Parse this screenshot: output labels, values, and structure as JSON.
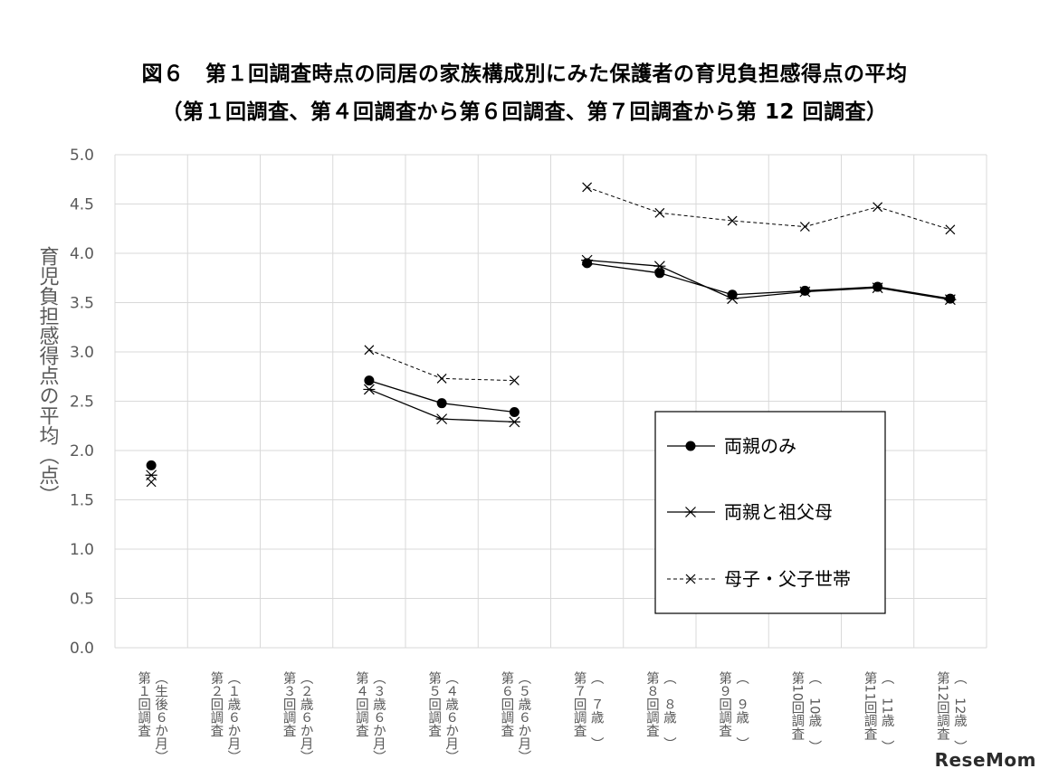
{
  "title_line1": "図６　第１回調査時点の同居の家族構成別にみた保護者の育児負担感得点の平均",
  "title_line2": "（第１回調査、第４回調査から第６回調査、第７回調査から第 12 回調査）",
  "watermark": "ReseMom",
  "chart_data": {
    "type": "line",
    "ylabel": "育児負担感得点の平均（点）",
    "ylim": [
      0,
      5
    ],
    "yticks": [
      "0.0",
      "0.5",
      "1.0",
      "1.5",
      "2.0",
      "2.5",
      "3.0",
      "3.5",
      "4.0",
      "4.5",
      "5.0"
    ],
    "categories": [
      {
        "line1": "第１回調査",
        "line2": "（生後６か月）"
      },
      {
        "line1": "第２回調査",
        "line2": "（１歳６か月）"
      },
      {
        "line1": "第３回調査",
        "line2": "（２歳６か月）"
      },
      {
        "line1": "第４回調査",
        "line2": "（３歳６か月）"
      },
      {
        "line1": "第５回調査",
        "line2": "（４歳６か月）"
      },
      {
        "line1": "第６回調査",
        "line2": "（５歳６か月）"
      },
      {
        "line1": "第７回調査",
        "line2": "（　７歳　）"
      },
      {
        "line1": "第８回調査",
        "line2": "（　８歳　）"
      },
      {
        "line1": "第９回調査",
        "line2": "（　９歳　）"
      },
      {
        "line1": "第10回調査",
        "line2": "（　10歳　）"
      },
      {
        "line1": "第11回調査",
        "line2": "（　11歳　）"
      },
      {
        "line1": "第12回調査",
        "line2": "（　12歳　）"
      }
    ],
    "segments": [
      [
        0,
        0
      ],
      [
        3,
        5
      ],
      [
        6,
        11
      ]
    ],
    "series": [
      {
        "name": "両親のみ",
        "marker": "circle",
        "dash": false,
        "values": [
          1.85,
          null,
          null,
          2.71,
          2.48,
          2.39,
          3.9,
          3.8,
          3.58,
          3.62,
          3.66,
          3.54
        ]
      },
      {
        "name": "両親と祖父母",
        "marker": "star",
        "dash": false,
        "values": [
          1.75,
          null,
          null,
          2.62,
          2.32,
          2.29,
          3.93,
          3.87,
          3.54,
          3.61,
          3.65,
          3.53
        ]
      },
      {
        "name": "母子・父子世帯",
        "marker": "x",
        "dash": true,
        "values": [
          1.68,
          null,
          null,
          3.02,
          2.73,
          2.71,
          4.67,
          4.41,
          4.33,
          4.27,
          4.47,
          4.24
        ]
      }
    ],
    "grid": true,
    "legend_position": "right-middle"
  }
}
